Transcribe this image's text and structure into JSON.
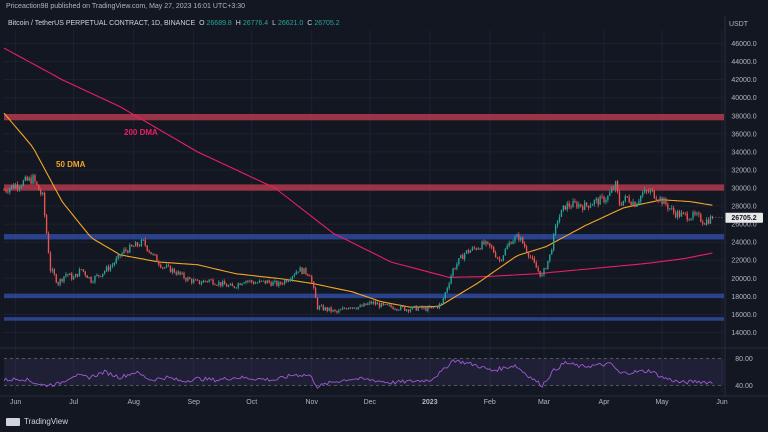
{
  "header": {
    "publisher": "Priceaction98 published on TradingView.com, May 27, 2023 16:01 UTC+3:30",
    "symbol": "Bitcoin / TetherUS PERPETUAL CONTRACT, 1D, BINANCE",
    "open_label": "O",
    "open": "26689.8",
    "high_label": "H",
    "high": "26776.4",
    "low_label": "L",
    "low": "26621.0",
    "close_label": "C",
    "close": "26705.2"
  },
  "currency": "USDT",
  "current_price_label": "26705.2",
  "labels": {
    "dma200": "200 DMA",
    "dma50": "50 DMA"
  },
  "footer": {
    "brand": "TradingView"
  },
  "colors": {
    "background": "#131722",
    "up": "#26a69a",
    "down": "#ef5350",
    "resistance_zone": "#b23a4e",
    "support_zone": "#2f4a9e",
    "dma200": "#e91e63",
    "dma50": "#f5a623",
    "rsi": "#9c5bd6"
  },
  "chart_data": {
    "type": "candlestick",
    "y_axis": {
      "min": 12500,
      "max": 47500,
      "ticks": [
        14000,
        16000,
        18000,
        20000,
        22000,
        24000,
        26000,
        28000,
        30000,
        32000,
        34000,
        36000,
        38000,
        40000,
        42000,
        44000,
        46000
      ]
    },
    "x_axis": {
      "labels": [
        {
          "text": "Jun",
          "day": 6
        },
        {
          "text": "Jul",
          "day": 36
        },
        {
          "text": "Aug",
          "day": 67
        },
        {
          "text": "Sep",
          "day": 98
        },
        {
          "text": "Oct",
          "day": 128
        },
        {
          "text": "Nov",
          "day": 159
        },
        {
          "text": "Dec",
          "day": 189
        },
        {
          "text": "2023",
          "day": 220
        },
        {
          "text": "Feb",
          "day": 251
        },
        {
          "text": "Mar",
          "day": 279
        },
        {
          "text": "Apr",
          "day": 310
        },
        {
          "text": "May",
          "day": 340
        },
        {
          "text": "Jun",
          "day": 371
        }
      ],
      "range_days": [
        0,
        372
      ]
    },
    "zones": [
      {
        "name": "resistance-high",
        "low": 37500,
        "high": 38200,
        "type": "resistance"
      },
      {
        "name": "resistance-30k",
        "low": 29700,
        "high": 30400,
        "type": "resistance"
      },
      {
        "name": "support-24-5k",
        "low": 24300,
        "high": 24900,
        "type": "support"
      },
      {
        "name": "support-18k",
        "low": 17800,
        "high": 18300,
        "type": "support"
      },
      {
        "name": "support-15-5k",
        "low": 15300,
        "high": 15700,
        "type": "support"
      }
    ],
    "price_keypoints": [
      [
        0,
        29800
      ],
      [
        8,
        30500
      ],
      [
        15,
        31000
      ],
      [
        20,
        29000
      ],
      [
        24,
        21000
      ],
      [
        28,
        19500
      ],
      [
        32,
        20500
      ],
      [
        36,
        20000
      ],
      [
        40,
        21000
      ],
      [
        45,
        19800
      ],
      [
        50,
        20500
      ],
      [
        56,
        21500
      ],
      [
        62,
        23000
      ],
      [
        67,
        23500
      ],
      [
        72,
        24000
      ],
      [
        77,
        22500
      ],
      [
        82,
        21300
      ],
      [
        88,
        20800
      ],
      [
        94,
        20000
      ],
      [
        100,
        19500
      ],
      [
        106,
        19800
      ],
      [
        112,
        19400
      ],
      [
        118,
        19000
      ],
      [
        124,
        19800
      ],
      [
        130,
        19500
      ],
      [
        136,
        19600
      ],
      [
        142,
        19300
      ],
      [
        148,
        20200
      ],
      [
        152,
        21000
      ],
      [
        158,
        20500
      ],
      [
        162,
        16800
      ],
      [
        168,
        16500
      ],
      [
        172,
        16200
      ],
      [
        178,
        16900
      ],
      [
        184,
        16800
      ],
      [
        190,
        17300
      ],
      [
        196,
        16900
      ],
      [
        202,
        16800
      ],
      [
        208,
        16600
      ],
      [
        214,
        16700
      ],
      [
        220,
        16600
      ],
      [
        226,
        17100
      ],
      [
        232,
        21000
      ],
      [
        238,
        22800
      ],
      [
        242,
        23200
      ],
      [
        248,
        23800
      ],
      [
        252,
        23300
      ],
      [
        256,
        22000
      ],
      [
        262,
        24200
      ],
      [
        266,
        24600
      ],
      [
        270,
        23200
      ],
      [
        274,
        21500
      ],
      [
        278,
        20200
      ],
      [
        282,
        22500
      ],
      [
        286,
        26500
      ],
      [
        290,
        28000
      ],
      [
        296,
        28200
      ],
      [
        300,
        28000
      ],
      [
        304,
        28400
      ],
      [
        308,
        28600
      ],
      [
        312,
        29000
      ],
      [
        316,
        30300
      ],
      [
        318,
        28300
      ],
      [
        322,
        28900
      ],
      [
        326,
        28300
      ],
      [
        330,
        29400
      ],
      [
        334,
        29600
      ],
      [
        338,
        29000
      ],
      [
        342,
        28200
      ],
      [
        346,
        27300
      ],
      [
        350,
        27000
      ],
      [
        354,
        26900
      ],
      [
        358,
        26800
      ],
      [
        362,
        26300
      ],
      [
        366,
        26705
      ]
    ],
    "dma200_keypoints": [
      [
        0,
        45500
      ],
      [
        30,
        42000
      ],
      [
        60,
        39000
      ],
      [
        100,
        34000
      ],
      [
        140,
        30000
      ],
      [
        170,
        25000
      ],
      [
        200,
        21800
      ],
      [
        230,
        20100
      ],
      [
        250,
        20200
      ],
      [
        275,
        20500
      ],
      [
        300,
        21000
      ],
      [
        330,
        21600
      ],
      [
        352,
        22200
      ],
      [
        366,
        22800
      ]
    ],
    "dma50_keypoints": [
      [
        0,
        38300
      ],
      [
        15,
        34500
      ],
      [
        30,
        28500
      ],
      [
        45,
        24500
      ],
      [
        60,
        22600
      ],
      [
        80,
        21800
      ],
      [
        100,
        21500
      ],
      [
        120,
        20500
      ],
      [
        145,
        19900
      ],
      [
        160,
        19400
      ],
      [
        180,
        18500
      ],
      [
        195,
        17400
      ],
      [
        210,
        16800
      ],
      [
        225,
        16900
      ],
      [
        245,
        19500
      ],
      [
        265,
        22500
      ],
      [
        280,
        23500
      ],
      [
        300,
        25800
      ],
      [
        320,
        27800
      ],
      [
        340,
        28700
      ],
      [
        354,
        28500
      ],
      [
        366,
        28100
      ]
    ],
    "rsi": {
      "levels": [
        40,
        80
      ],
      "tick_labels": [
        "80.00",
        "40.00"
      ],
      "range": [
        30,
        90
      ],
      "keypoints": [
        [
          0,
          48
        ],
        [
          10,
          50
        ],
        [
          20,
          40
        ],
        [
          28,
          42
        ],
        [
          36,
          55
        ],
        [
          44,
          52
        ],
        [
          52,
          60
        ],
        [
          60,
          52
        ],
        [
          68,
          60
        ],
        [
          76,
          48
        ],
        [
          84,
          52
        ],
        [
          92,
          46
        ],
        [
          100,
          50
        ],
        [
          110,
          48
        ],
        [
          120,
          52
        ],
        [
          130,
          50
        ],
        [
          140,
          48
        ],
        [
          150,
          56
        ],
        [
          158,
          55
        ],
        [
          162,
          38
        ],
        [
          170,
          45
        ],
        [
          180,
          50
        ],
        [
          190,
          48
        ],
        [
          200,
          44
        ],
        [
          210,
          46
        ],
        [
          220,
          48
        ],
        [
          226,
          60
        ],
        [
          232,
          78
        ],
        [
          238,
          74
        ],
        [
          244,
          70
        ],
        [
          252,
          62
        ],
        [
          258,
          66
        ],
        [
          264,
          70
        ],
        [
          272,
          52
        ],
        [
          278,
          40
        ],
        [
          284,
          62
        ],
        [
          290,
          74
        ],
        [
          298,
          68
        ],
        [
          306,
          70
        ],
        [
          314,
          72
        ],
        [
          318,
          58
        ],
        [
          326,
          60
        ],
        [
          334,
          62
        ],
        [
          340,
          52
        ],
        [
          350,
          44
        ],
        [
          358,
          46
        ],
        [
          366,
          44
        ]
      ]
    }
  }
}
